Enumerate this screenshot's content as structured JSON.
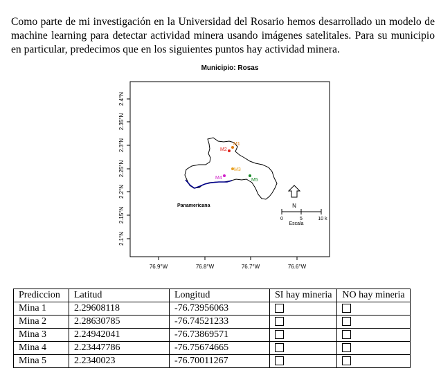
{
  "intro_text": "Como parte de mi investigación en la Universidad del Rosario hemos desarrollado un modelo de machine learning para detectar actividad minera usando imágenes satelitales. Para su municipio en particular, predecimos que en los siguientes puntos hay actividad minera.",
  "map": {
    "title": "Municipio: Rosas",
    "y_ticks": [
      "2.1°N",
      "2.15°N",
      "2.2°N",
      "2.25°N",
      "2.3°N",
      "2.35°N",
      "2.4°N"
    ],
    "x_ticks": [
      "76.9°W",
      "76.8°W",
      "76.7°W",
      "76.6°W"
    ],
    "road_label": "Panamericana",
    "north_label": "N",
    "scale_ticks": [
      "0",
      "5",
      "10 k"
    ],
    "scale_label": "Escala",
    "colors": {
      "M1": "#e07a10",
      "M2": "#e0201a",
      "M3": "#e8a020",
      "M4": "#d020c8",
      "M5": "#1a8a2a",
      "road": "#00008b"
    },
    "points": [
      {
        "label": "M1",
        "color": "#e07a10"
      },
      {
        "label": "M2",
        "color": "#e0201a"
      },
      {
        "label": "M3",
        "color": "#e8a020"
      },
      {
        "label": "M4",
        "color": "#d020c8"
      },
      {
        "label": "M5",
        "color": "#1a8a2a"
      }
    ]
  },
  "table": {
    "headers": [
      "Prediccion",
      "Latitud",
      "Longitud",
      "SI hay mineria",
      "NO hay mineria"
    ],
    "rows": [
      {
        "name": "Mina 1",
        "lat": "2.29608118",
        "lon": "-76.73956063"
      },
      {
        "name": "Mina 2",
        "lat": "2.28630785",
        "lon": "-76.74521233"
      },
      {
        "name": "Mina 3",
        "lat": "2.24942041",
        "lon": "-76.73869571"
      },
      {
        "name": "Mina 4",
        "lat": "2.23447786",
        "lon": "-76.75674665"
      },
      {
        "name": "Mina 5",
        "lat": "2.2340023",
        "lon": "-76.70011267"
      }
    ]
  }
}
